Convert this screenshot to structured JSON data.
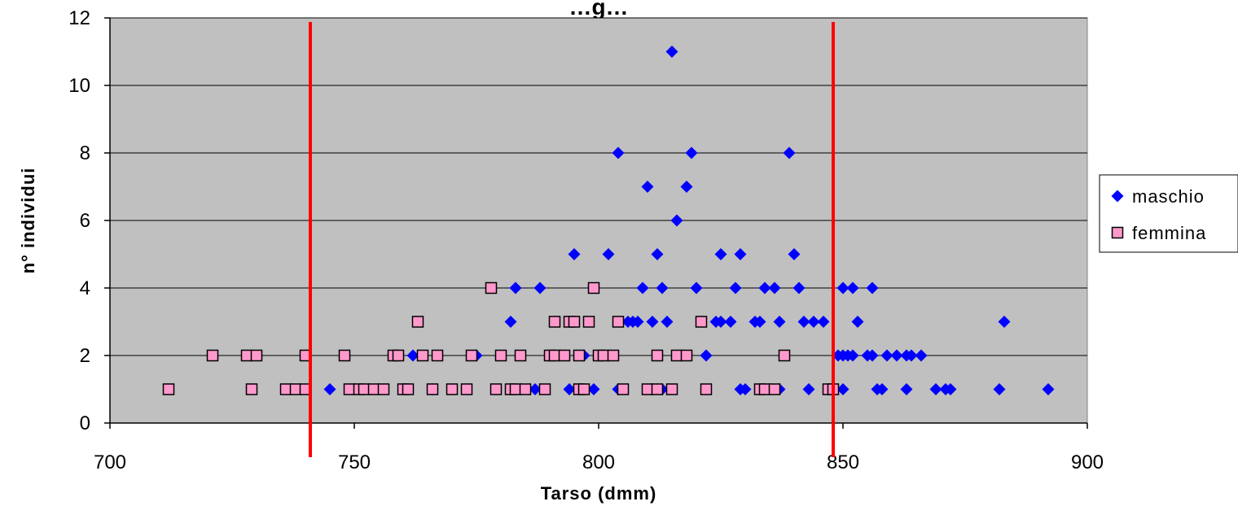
{
  "chart_data": {
    "type": "scatter",
    "title": "…g…",
    "xlabel": "Tarso (dmm)",
    "ylabel": "n° individui",
    "xlim": [
      700,
      900
    ],
    "ylim": [
      0,
      12
    ],
    "xticks": [
      "700",
      "750",
      "800",
      "850",
      "900"
    ],
    "yticks": [
      "0",
      "2",
      "4",
      "6",
      "8",
      "10",
      "12"
    ],
    "grid": "horizontal",
    "legend_position": "right",
    "vertical_lines": [
      {
        "x": 741,
        "color": "#ff0000"
      },
      {
        "x": 848,
        "color": "#ff0000"
      }
    ],
    "series": [
      {
        "name": "maschio",
        "marker": "diamond",
        "color": "#0000ff",
        "points": [
          [
            745,
            1
          ],
          [
            766,
            1
          ],
          [
            787,
            1
          ],
          [
            794,
            1
          ],
          [
            799,
            1
          ],
          [
            804,
            1
          ],
          [
            811,
            1
          ],
          [
            812,
            1
          ],
          [
            813,
            1
          ],
          [
            829,
            1
          ],
          [
            830,
            1
          ],
          [
            837,
            1
          ],
          [
            843,
            1
          ],
          [
            850,
            1
          ],
          [
            857,
            1
          ],
          [
            858,
            1
          ],
          [
            863,
            1
          ],
          [
            869,
            1
          ],
          [
            871,
            1
          ],
          [
            872,
            1
          ],
          [
            882,
            1
          ],
          [
            892,
            1
          ],
          [
            762,
            2
          ],
          [
            775,
            2
          ],
          [
            793,
            2
          ],
          [
            797,
            2
          ],
          [
            812,
            2
          ],
          [
            822,
            2
          ],
          [
            849,
            2
          ],
          [
            850,
            2
          ],
          [
            851,
            2
          ],
          [
            852,
            2
          ],
          [
            855,
            2
          ],
          [
            856,
            2
          ],
          [
            859,
            2
          ],
          [
            861,
            2
          ],
          [
            863,
            2
          ],
          [
            864,
            2
          ],
          [
            866,
            2
          ],
          [
            782,
            3
          ],
          [
            806,
            3
          ],
          [
            807,
            3
          ],
          [
            808,
            3
          ],
          [
            811,
            3
          ],
          [
            814,
            3
          ],
          [
            824,
            3
          ],
          [
            825,
            3
          ],
          [
            827,
            3
          ],
          [
            832,
            3
          ],
          [
            833,
            3
          ],
          [
            837,
            3
          ],
          [
            842,
            3
          ],
          [
            844,
            3
          ],
          [
            846,
            3
          ],
          [
            853,
            3
          ],
          [
            883,
            3
          ],
          [
            783,
            4
          ],
          [
            788,
            4
          ],
          [
            809,
            4
          ],
          [
            813,
            4
          ],
          [
            820,
            4
          ],
          [
            828,
            4
          ],
          [
            834,
            4
          ],
          [
            836,
            4
          ],
          [
            841,
            4
          ],
          [
            850,
            4
          ],
          [
            852,
            4
          ],
          [
            856,
            4
          ],
          [
            795,
            5
          ],
          [
            802,
            5
          ],
          [
            812,
            5
          ],
          [
            825,
            5
          ],
          [
            829,
            5
          ],
          [
            840,
            5
          ],
          [
            816,
            6
          ],
          [
            810,
            7
          ],
          [
            818,
            7
          ],
          [
            804,
            8
          ],
          [
            819,
            8
          ],
          [
            839,
            8
          ],
          [
            815,
            11
          ]
        ]
      },
      {
        "name": "femmina",
        "marker": "square",
        "color": "#ff99cc",
        "points": [
          [
            712,
            1
          ],
          [
            729,
            1
          ],
          [
            736,
            1
          ],
          [
            738,
            1
          ],
          [
            740,
            1
          ],
          [
            749,
            1
          ],
          [
            751,
            1
          ],
          [
            752,
            1
          ],
          [
            754,
            1
          ],
          [
            756,
            1
          ],
          [
            760,
            1
          ],
          [
            761,
            1
          ],
          [
            766,
            1
          ],
          [
            770,
            1
          ],
          [
            773,
            1
          ],
          [
            779,
            1
          ],
          [
            782,
            1
          ],
          [
            783,
            1
          ],
          [
            785,
            1
          ],
          [
            789,
            1
          ],
          [
            796,
            1
          ],
          [
            797,
            1
          ],
          [
            805,
            1
          ],
          [
            810,
            1
          ],
          [
            812,
            1
          ],
          [
            815,
            1
          ],
          [
            822,
            1
          ],
          [
            833,
            1
          ],
          [
            834,
            1
          ],
          [
            836,
            1
          ],
          [
            847,
            1
          ],
          [
            848,
            1
          ],
          [
            721,
            2
          ],
          [
            728,
            2
          ],
          [
            730,
            2
          ],
          [
            740,
            2
          ],
          [
            748,
            2
          ],
          [
            758,
            2
          ],
          [
            759,
            2
          ],
          [
            764,
            2
          ],
          [
            767,
            2
          ],
          [
            774,
            2
          ],
          [
            780,
            2
          ],
          [
            784,
            2
          ],
          [
            790,
            2
          ],
          [
            791,
            2
          ],
          [
            793,
            2
          ],
          [
            796,
            2
          ],
          [
            800,
            2
          ],
          [
            801,
            2
          ],
          [
            803,
            2
          ],
          [
            812,
            2
          ],
          [
            816,
            2
          ],
          [
            818,
            2
          ],
          [
            838,
            2
          ],
          [
            763,
            3
          ],
          [
            791,
            3
          ],
          [
            794,
            3
          ],
          [
            795,
            3
          ],
          [
            798,
            3
          ],
          [
            804,
            3
          ],
          [
            821,
            3
          ],
          [
            778,
            4
          ],
          [
            799,
            4
          ]
        ]
      }
    ]
  }
}
